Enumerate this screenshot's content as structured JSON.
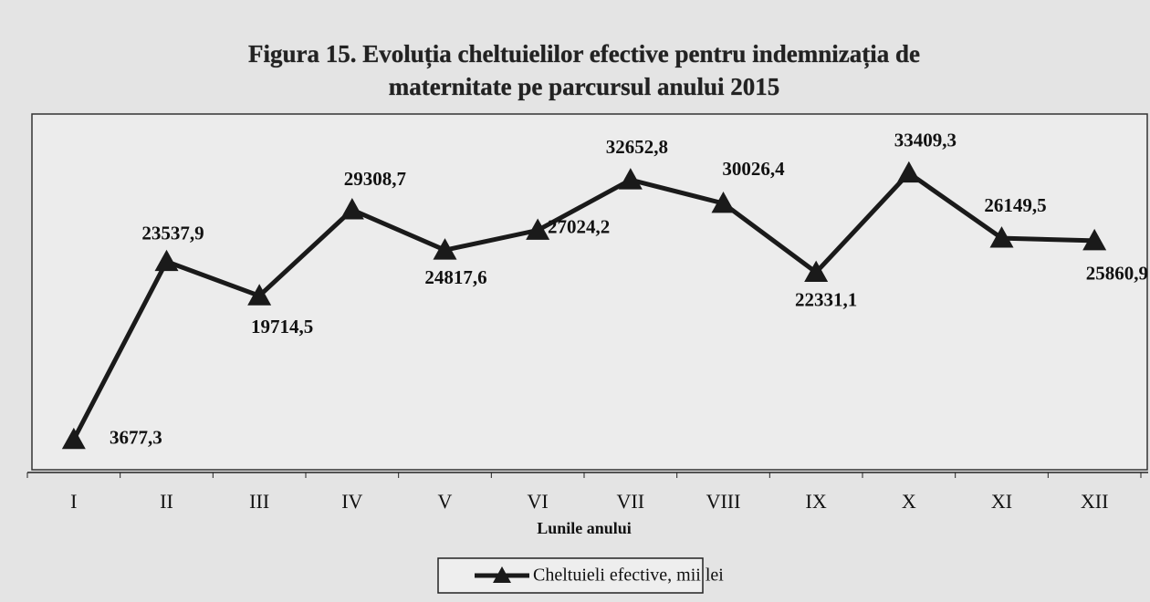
{
  "chart_data": {
    "type": "line",
    "title": "Figura 15. Evoluția cheltuielilor efective pentru indemnizația de",
    "subtitle": "maternitate pe parcursul anului 2015",
    "x_label": "Lunile anului",
    "categories": [
      "I",
      "II",
      "III",
      "IV",
      "V",
      "VI",
      "VII",
      "VIII",
      "IX",
      "X",
      "XI",
      "XII"
    ],
    "series": [
      {
        "name": "Cheltuieli efective, mii lei",
        "color": "#1a1a1a",
        "values": [
          3677.3,
          23537.9,
          19714.5,
          29308.7,
          24817.6,
          27024.2,
          32652.8,
          30026.4,
          22331.1,
          33409.3,
          26149.5,
          25860.9
        ],
        "value_labels": [
          "3677,3",
          "23537,9",
          "19714,5",
          "29308,7",
          "24817,6",
          "27024,2",
          "32652,8",
          "30026,4",
          "22331,1",
          "33409,3",
          "26149,5",
          "25860,9"
        ]
      }
    ],
    "ylim": [
      0,
      40000
    ]
  }
}
